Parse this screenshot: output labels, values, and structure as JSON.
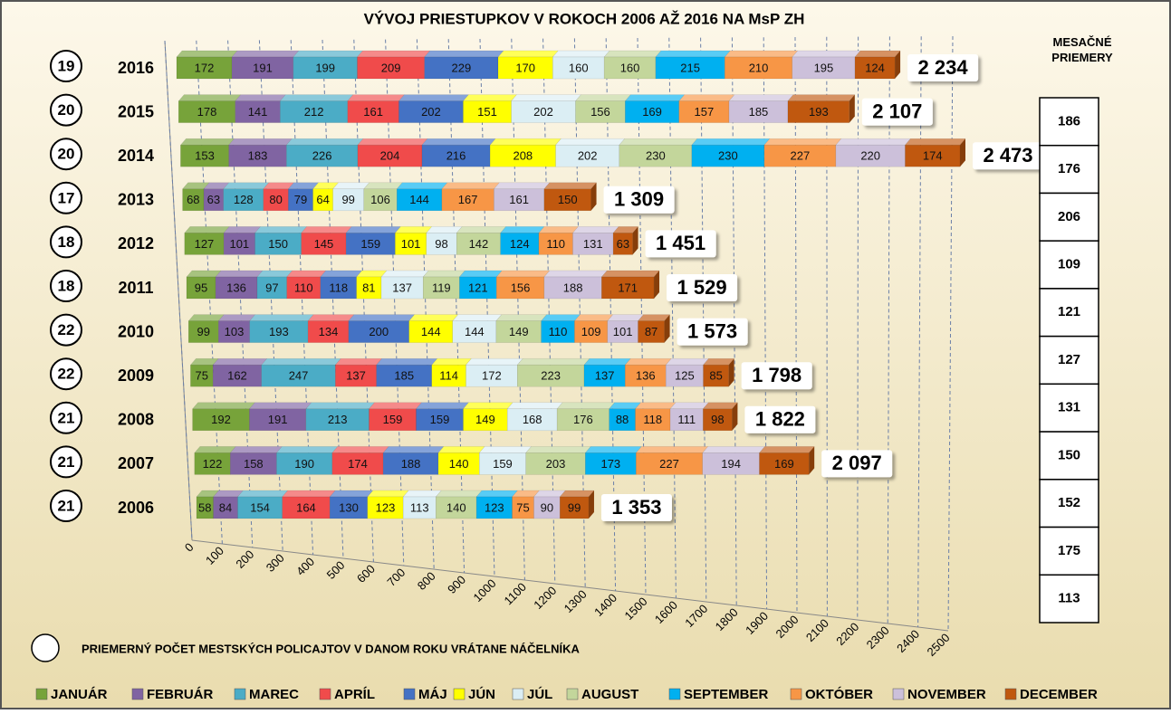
{
  "chart_data": {
    "type": "bar",
    "stacked": true,
    "orientation": "horizontal",
    "title": "VÝVOJ PRIESTUPKOV V ROKOCH 2006 AŽ 2016 NA MsP ZH",
    "categories": [
      "2016",
      "2015",
      "2014",
      "2013",
      "2012",
      "2011",
      "2010",
      "2009",
      "2008",
      "2007",
      "2006"
    ],
    "series": [
      {
        "name": "JANUÁR",
        "color": "#77a33a",
        "values": [
          172,
          178,
          153,
          68,
          127,
          95,
          99,
          75,
          192,
          122,
          58
        ]
      },
      {
        "name": "FEBRUÁR",
        "color": "#8064a2",
        "values": [
          191,
          141,
          183,
          63,
          101,
          136,
          103,
          162,
          191,
          158,
          84
        ]
      },
      {
        "name": "MAREC",
        "color": "#4bacc6",
        "values": [
          199,
          212,
          226,
          128,
          150,
          97,
          193,
          247,
          213,
          190,
          154
        ]
      },
      {
        "name": "APRÍL",
        "color": "#f04b4b",
        "values": [
          209,
          161,
          204,
          80,
          145,
          110,
          134,
          137,
          159,
          174,
          164
        ]
      },
      {
        "name": "MÁJ",
        "color": "#4472c4",
        "values": [
          229,
          202,
          216,
          79,
          159,
          118,
          200,
          185,
          159,
          188,
          130
        ]
      },
      {
        "name": "JÚN",
        "color": "#ffff00",
        "values": [
          170,
          151,
          208,
          64,
          101,
          81,
          144,
          114,
          149,
          140,
          123
        ]
      },
      {
        "name": "JÚL",
        "color": "#dbeef4",
        "values": [
          160,
          202,
          202,
          99,
          98,
          137,
          144,
          172,
          168,
          159,
          113
        ]
      },
      {
        "name": "AUGUST",
        "color": "#c3d69b",
        "values": [
          160,
          156,
          230,
          106,
          142,
          119,
          149,
          223,
          176,
          203,
          140
        ]
      },
      {
        "name": "SEPTEMBER",
        "color": "#00b0f0",
        "values": [
          215,
          169,
          230,
          144,
          124,
          121,
          110,
          137,
          88,
          173,
          123
        ]
      },
      {
        "name": "OKTÓBER",
        "color": "#f79646",
        "values": [
          210,
          157,
          227,
          167,
          110,
          156,
          109,
          136,
          118,
          227,
          75
        ]
      },
      {
        "name": "NOVEMBER",
        "color": "#ccc0da",
        "values": [
          195,
          185,
          220,
          161,
          131,
          188,
          101,
          125,
          111,
          194,
          90
        ]
      },
      {
        "name": "DECEMBER",
        "color": "#c0580f",
        "values": [
          124,
          193,
          174,
          150,
          63,
          171,
          87,
          85,
          98,
          169,
          99
        ]
      }
    ],
    "totals": {
      "values": [
        2234,
        2107,
        2473,
        1309,
        1451,
        1529,
        1573,
        1798,
        1822,
        2097,
        1353
      ],
      "value_labels": [
        "2 234",
        "2 107",
        "2 473",
        "1 309",
        "1 451",
        "1 529",
        "1 573",
        "1 798",
        "1 822",
        "2 097",
        "1 353"
      ]
    },
    "officers": {
      "values": [
        19,
        20,
        20,
        17,
        18,
        18,
        22,
        22,
        21,
        21,
        21
      ]
    },
    "monthly_averages": {
      "title": "MESAČNÉ PRIEMERY",
      "values": [
        186,
        176,
        206,
        109,
        121,
        127,
        131,
        150,
        152,
        175,
        113
      ]
    },
    "note": "PRIEMERNÝ POČET MESTSKÝCH POLICAJTOV V DANOM ROKU VRÁTANE NÁČELNÍKA",
    "xlim": [
      0,
      2500
    ],
    "xticks": [
      0,
      100,
      200,
      300,
      400,
      500,
      600,
      700,
      800,
      900,
      1000,
      1100,
      1200,
      1300,
      1400,
      1500,
      1600,
      1700,
      1800,
      1900,
      2000,
      2100,
      2200,
      2300,
      2400,
      2500
    ],
    "grid": true,
    "legend": "bottom"
  }
}
